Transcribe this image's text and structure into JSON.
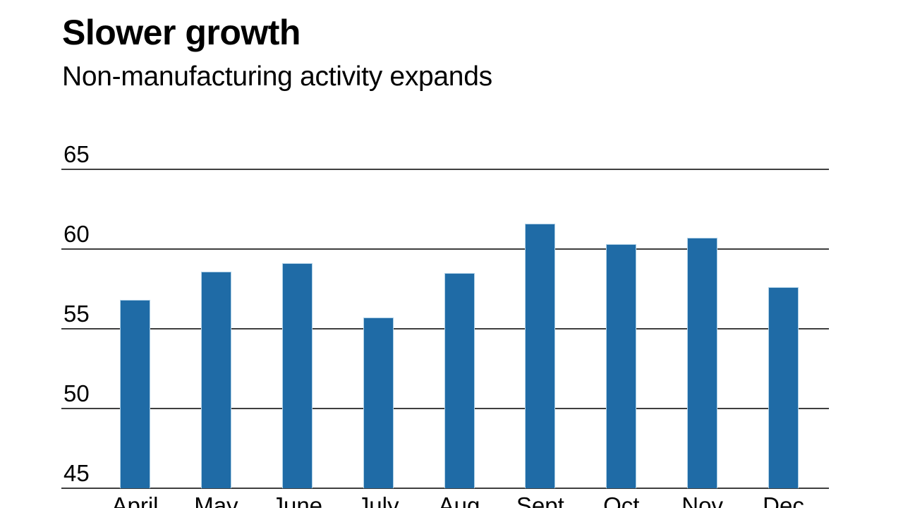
{
  "header": {
    "title": "Slower growth",
    "subtitle": "Non-manufacturing activity expands"
  },
  "chart_data": {
    "type": "bar",
    "title": "Slower growth",
    "subtitle": "Non-manufacturing activity expands",
    "categories": [
      "April",
      "May",
      "June",
      "July",
      "Aug",
      "Sept",
      "Oct",
      "Nov",
      "Dec"
    ],
    "values": [
      56.8,
      58.6,
      59.1,
      55.7,
      58.5,
      61.6,
      60.3,
      60.7,
      57.6
    ],
    "xlabel": "",
    "ylabel": "",
    "ylim": [
      45,
      65
    ],
    "yticks": [
      45,
      50,
      55,
      60,
      65
    ],
    "grid": true,
    "legend": false,
    "colors": {
      "bar_fill": "#1f6ba6",
      "bar_edge": "#aed0e6",
      "gridline": "#3f3f3f",
      "text": "#000000",
      "background": "#ffffff"
    }
  }
}
